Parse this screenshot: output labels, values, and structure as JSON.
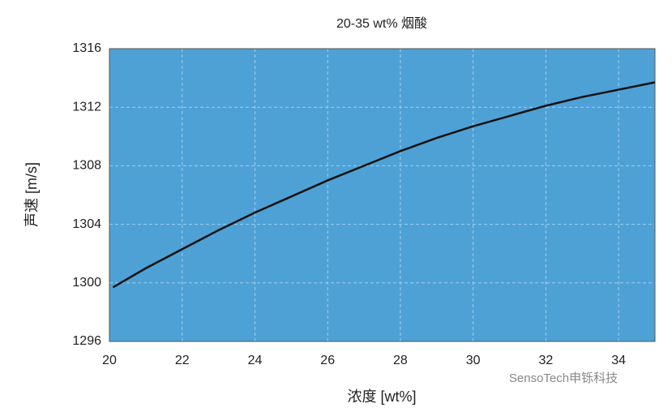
{
  "chart_data": {
    "type": "line",
    "title": "20-35 wt% 烟酸",
    "x_label": "浓度 [wt%]",
    "y_label": "声速 [m/s]",
    "watermark": "SensoTech申铄科技",
    "x": [
      20.1,
      21,
      22,
      23,
      24,
      25,
      26,
      27,
      28,
      29,
      30,
      31,
      32,
      33,
      34,
      35
    ],
    "series": [
      {
        "name": "声速",
        "color": "#111111",
        "values": [
          1299.7,
          1301.0,
          1302.3,
          1303.6,
          1304.8,
          1305.9,
          1307.0,
          1308.0,
          1309.0,
          1309.9,
          1310.7,
          1311.4,
          1312.1,
          1312.7,
          1313.2,
          1313.7
        ]
      }
    ],
    "xlim": [
      20,
      35
    ],
    "xticks": [
      20,
      22,
      24,
      26,
      28,
      30,
      32,
      34
    ],
    "ylim": [
      1296,
      1316
    ],
    "yticks": [
      1296,
      1300,
      1304,
      1308,
      1312,
      1316
    ],
    "plot_color": "#4ea1d5",
    "grid": true
  }
}
